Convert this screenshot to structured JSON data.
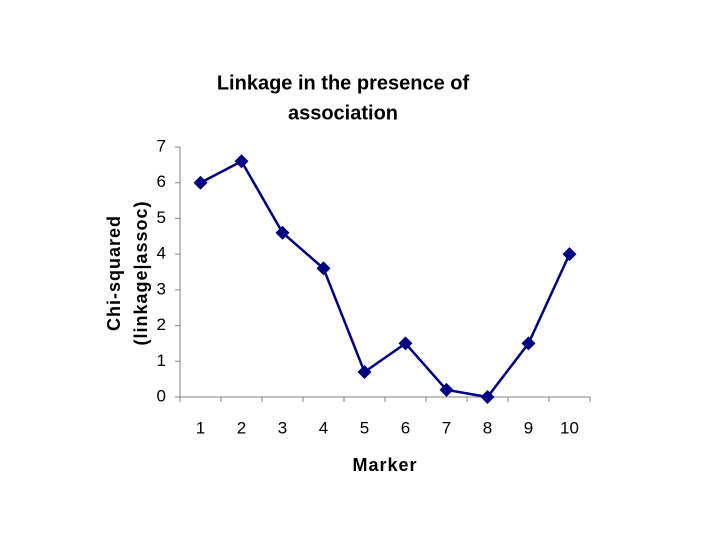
{
  "chart_data": {
    "type": "line",
    "title": [
      "Linkage in the presence of",
      "association"
    ],
    "x_label": "Marker",
    "y_label": [
      "Chi-squared",
      "(linkage|assoc)"
    ],
    "categories": [
      "1",
      "2",
      "3",
      "4",
      "5",
      "6",
      "7",
      "8",
      "9",
      "10"
    ],
    "series": [
      {
        "color": "#000080",
        "values": [
          6.0,
          6.6,
          4.6,
          3.6,
          0.7,
          1.5,
          0.2,
          0.0,
          1.5,
          4.0
        ]
      }
    ],
    "ylim": [
      0,
      7
    ],
    "yticks": [
      0,
      1,
      2,
      3,
      4,
      5,
      6,
      7
    ],
    "grid": false
  }
}
